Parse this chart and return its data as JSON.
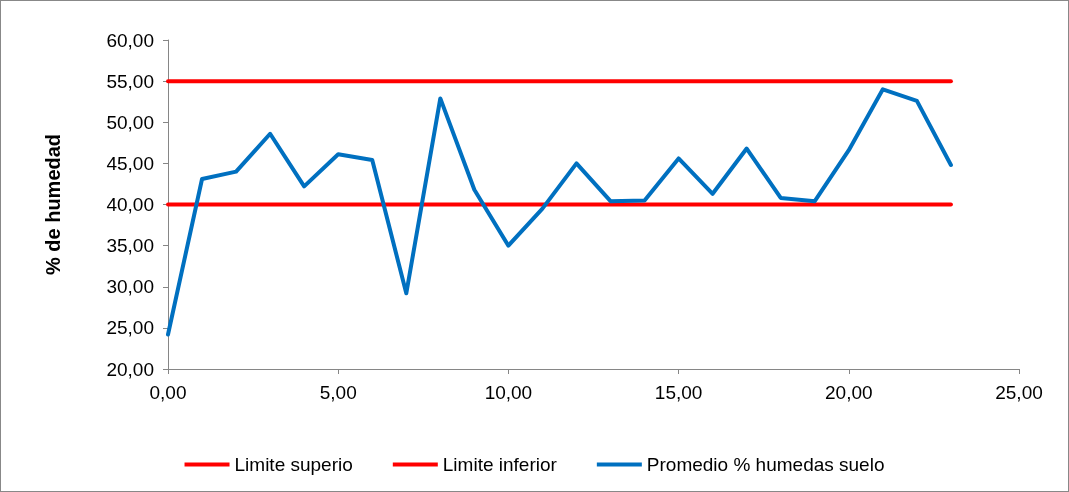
{
  "chart_data": {
    "type": "line",
    "ylabel": "% de humedad",
    "xlim": [
      0,
      25
    ],
    "xticks": [
      {
        "value": 0,
        "label": "0,00"
      },
      {
        "value": 5,
        "label": "5,00"
      },
      {
        "value": 10,
        "label": "10,00"
      },
      {
        "value": 15,
        "label": "15,00"
      },
      {
        "value": 20,
        "label": "20,00"
      },
      {
        "value": 25,
        "label": "25,00"
      }
    ],
    "ylim": [
      20,
      60
    ],
    "yticks": [
      {
        "value": 20,
        "label": "20,00"
      },
      {
        "value": 25,
        "label": "25,00"
      },
      {
        "value": 30,
        "label": "30,00"
      },
      {
        "value": 35,
        "label": "35,00"
      },
      {
        "value": 40,
        "label": "40,00"
      },
      {
        "value": 45,
        "label": "45,00"
      },
      {
        "value": 50,
        "label": "50,00"
      },
      {
        "value": 55,
        "label": "55,00"
      },
      {
        "value": 60,
        "label": "60,00"
      }
    ],
    "grid": false,
    "legend": "bottom",
    "marker": "none",
    "line_style": "solid",
    "series": [
      {
        "name": "Limite superio",
        "color": "#ff0000",
        "x": [
          0,
          23
        ],
        "values": [
          55,
          55
        ]
      },
      {
        "name": "Limite inferior",
        "color": "#ff0000",
        "x": [
          0,
          23
        ],
        "values": [
          40,
          40
        ]
      },
      {
        "name": "Promedio % humedas suelo",
        "color": "#0070c0",
        "x": [
          0,
          1,
          2,
          3,
          4,
          5,
          6,
          7,
          8,
          9,
          10,
          11,
          12,
          13,
          14,
          15,
          16,
          17,
          18,
          19,
          20,
          21,
          22,
          23
        ],
        "values": [
          24.2,
          43.1,
          44.0,
          48.6,
          42.2,
          46.1,
          45.4,
          29.2,
          52.9,
          41.8,
          35.0,
          39.5,
          45.0,
          40.4,
          40.5,
          45.6,
          41.3,
          46.8,
          40.8,
          40.4,
          46.6,
          54.0,
          52.6,
          44.8
        ]
      }
    ]
  }
}
